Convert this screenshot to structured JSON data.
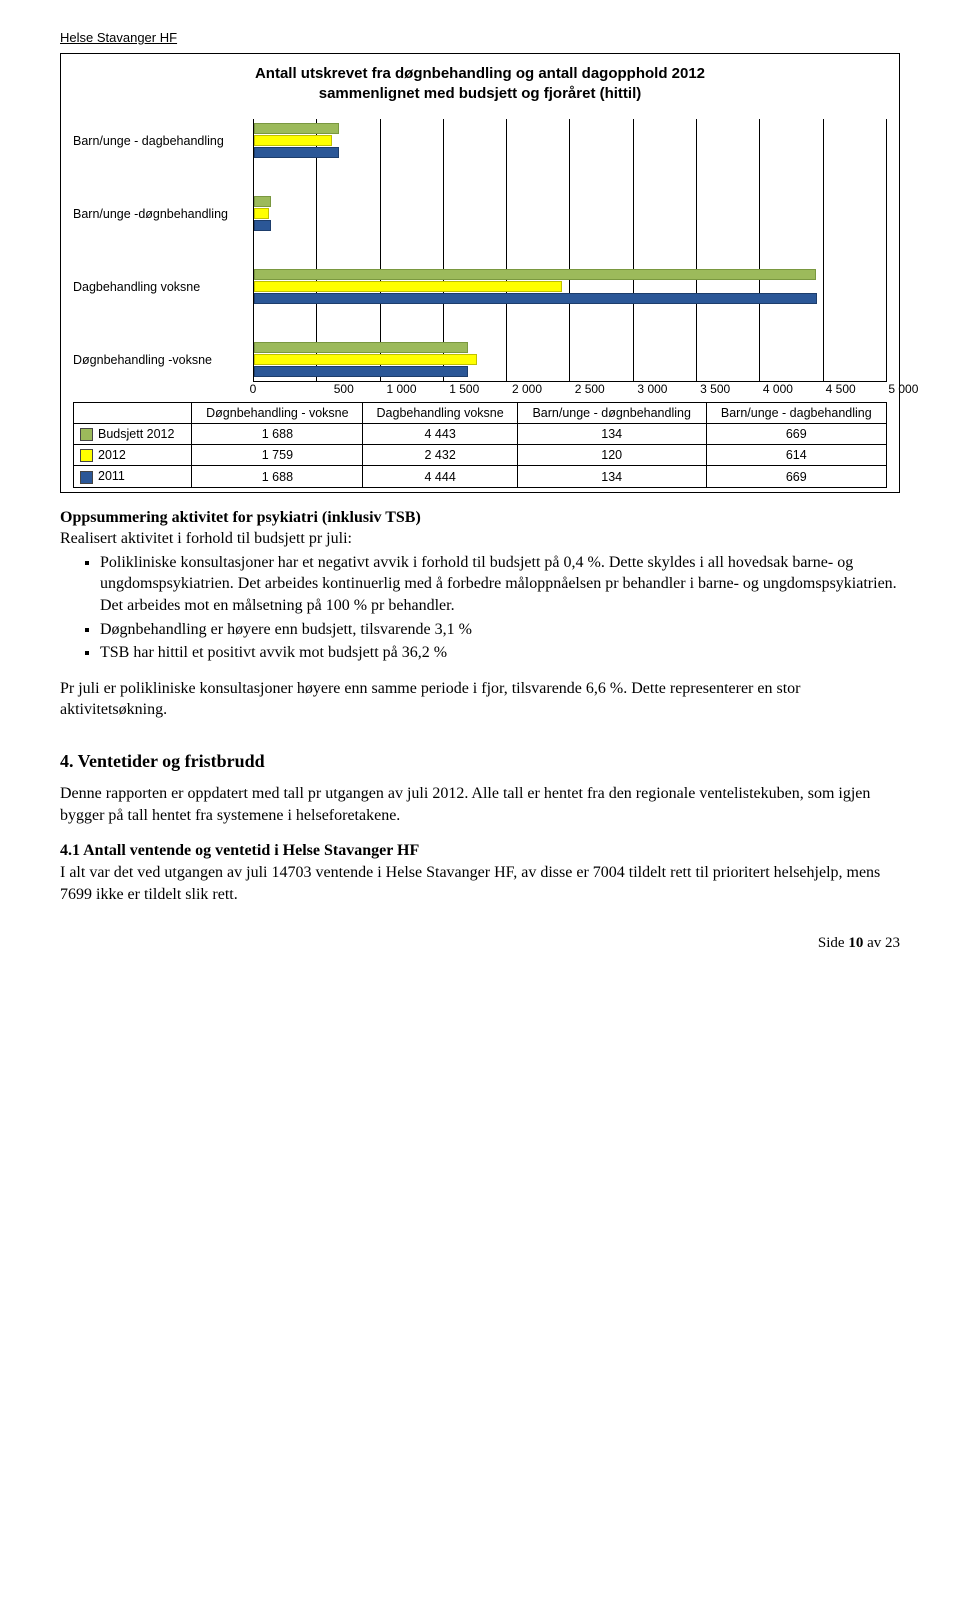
{
  "header": "Helse Stavanger HF",
  "chart": {
    "type": "bar",
    "title_line1": "Antall utskrevet fra døgnbehandling og antall dagopphold  2012",
    "title_line2": "sammenlignet med budsjett og fjoråret (hittil)",
    "x_max": 5000,
    "x_ticks": [
      "0",
      "500",
      "1 000",
      "1 500",
      "2 000",
      "2 500",
      "3 000",
      "3 500",
      "4 000",
      "4 500",
      "5 000"
    ],
    "series_colors": {
      "budsjett": "#9cba5b",
      "y2012": "#ffff00",
      "y2011": "#2b5797"
    },
    "categories": [
      {
        "label": "Barn/unge - dagbehandling",
        "budsjett": 669,
        "y2012": 614,
        "y2011": 669
      },
      {
        "label": "Barn/unge -døgnbehandling",
        "budsjett": 134,
        "y2012": 120,
        "y2011": 134
      },
      {
        "label": "Dagbehandling voksne",
        "budsjett": 4443,
        "y2012": 2432,
        "y2011": 4444
      },
      {
        "label": "Døgnbehandling -voksne",
        "budsjett": 1688,
        "y2012": 1759,
        "y2011": 1688
      }
    ],
    "table": {
      "cols": [
        "Døgnbehandling - voksne",
        "Dagbehandling voksne",
        "Barn/unge - døgnbehandling",
        "Barn/unge - dagbehandling"
      ],
      "rows": [
        {
          "label": "Budsjett 2012",
          "swatch": "#9cba5b",
          "cells": [
            "1 688",
            "4 443",
            "134",
            "669"
          ]
        },
        {
          "label": "2012",
          "swatch": "#ffff00",
          "cells": [
            "1 759",
            "2 432",
            "120",
            "614"
          ]
        },
        {
          "label": "2011",
          "swatch": "#2b5797",
          "cells": [
            "1 688",
            "4 444",
            "134",
            "669"
          ]
        }
      ]
    }
  },
  "summary_head": "Oppsummering aktivitet for psykiatri (inklusiv TSB)",
  "summary_sub": "Realisert aktivitet i forhold til budsjett pr juli:",
  "bullets": [
    "Polikliniske konsultasjoner har et negativt avvik i forhold til budsjett på 0,4 %. Dette skyldes i all hovedsak barne- og ungdomspsykiatrien. Det arbeides kontinuerlig med å forbedre måloppnåelsen pr behandler i barne- og ungdomspsykiatrien. Det arbeides mot en målsetning på 100 % pr behandler.",
    "Døgnbehandling er høyere enn budsjett, tilsvarende 3,1 %",
    "TSB har hittil et positivt avvik mot budsjett på 36,2 %"
  ],
  "para1": "Pr juli er polikliniske konsultasjoner høyere enn samme periode i fjor, tilsvarende 6,6 %. Dette representerer en stor aktivitetsøkning.",
  "section4_title": "4. Ventetider og fristbrudd",
  "para2": "Denne rapporten er oppdatert med tall pr utgangen av juli 2012. Alle tall er hentet fra den regionale ventelistekuben, som igjen bygger på tall hentet fra systemene i helseforetakene.",
  "sub41_head": "4.1 Antall ventende og ventetid i Helse Stavanger HF",
  "sub41_body": "I alt var det ved utgangen av juli 14703 ventende i Helse Stavanger HF, av disse er 7004 tildelt rett til prioritert helsehjelp, mens 7699 ikke er tildelt slik rett.",
  "footer_prefix": "Side ",
  "footer_page": "10",
  "footer_of": " av ",
  "footer_total": "23"
}
